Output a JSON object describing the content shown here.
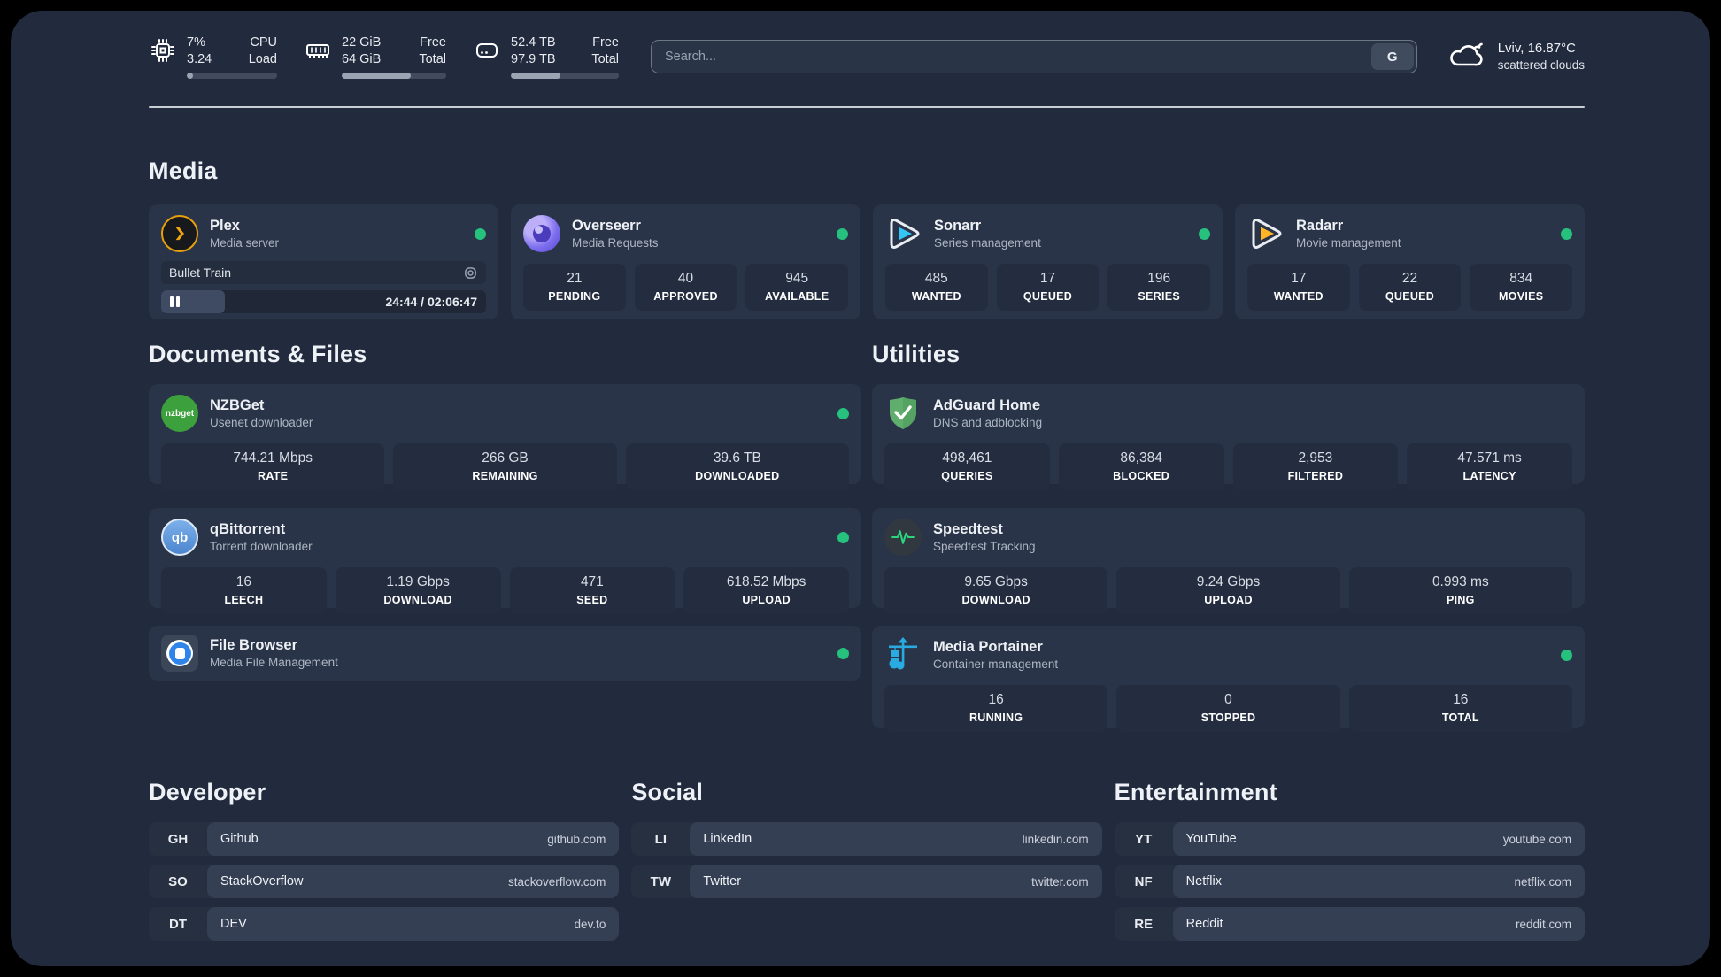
{
  "colors": {
    "page_background": "#222b3d",
    "card_background": "#2a3448",
    "stat_tile_background": "#242d3f",
    "status_online_green": "#25c17d",
    "plex_orange": "#e8a00d",
    "overseerr_purple": "#7c6cee",
    "sonarr_cyan": "#35c5f4",
    "radarr_yellow": "#ffb526",
    "nzbget_green": "#3ca03c",
    "qbittorrent_blue": "#4c86cf",
    "adguard_green": "#5fae6e",
    "speedtest_green": "#2ad77e",
    "portainer_blue": "#29abe2"
  },
  "topbar": {
    "cpu": {
      "value_top": "7%",
      "value_bottom": "3.24",
      "label_top": "CPU",
      "label_bottom": "Load",
      "usage_pct": 7
    },
    "memory": {
      "value_top": "22 GiB",
      "value_bottom": "64 GiB",
      "label_top": "Free",
      "label_bottom": "Total",
      "usage_pct": 66
    },
    "disk": {
      "value_top": "52.4 TB",
      "value_bottom": "97.9 TB",
      "label_top": "Free",
      "label_bottom": "Total",
      "usage_pct": 46
    },
    "search": {
      "placeholder": "Search...",
      "button": "G"
    },
    "weather": {
      "location": "Lviv, 16.87°C",
      "condition": "scattered clouds"
    }
  },
  "sections": {
    "media": {
      "title": "Media"
    },
    "documents": {
      "title": "Documents & Files"
    },
    "utilities": {
      "title": "Utilities"
    }
  },
  "apps": {
    "plex": {
      "name": "Plex",
      "description": "Media server",
      "now_playing": "Bullet Train",
      "time": "24:44 / 02:06:47",
      "progress_pct": 19.5
    },
    "overseerr": {
      "name": "Overseerr",
      "description": "Media Requests",
      "stats": [
        {
          "value": "21",
          "label": "PENDING"
        },
        {
          "value": "40",
          "label": "APPROVED"
        },
        {
          "value": "945",
          "label": "AVAILABLE"
        }
      ]
    },
    "sonarr": {
      "name": "Sonarr",
      "description": "Series management",
      "stats": [
        {
          "value": "485",
          "label": "WANTED"
        },
        {
          "value": "17",
          "label": "QUEUED"
        },
        {
          "value": "196",
          "label": "SERIES"
        }
      ]
    },
    "radarr": {
      "name": "Radarr",
      "description": "Movie management",
      "stats": [
        {
          "value": "17",
          "label": "WANTED"
        },
        {
          "value": "22",
          "label": "QUEUED"
        },
        {
          "value": "834",
          "label": "MOVIES"
        }
      ]
    },
    "nzbget": {
      "name": "NZBGet",
      "description": "Usenet downloader",
      "icon_text": "nzbget",
      "stats": [
        {
          "value": "744.21 Mbps",
          "label": "RATE"
        },
        {
          "value": "266 GB",
          "label": "REMAINING"
        },
        {
          "value": "39.6 TB",
          "label": "DOWNLOADED"
        }
      ]
    },
    "qbittorrent": {
      "name": "qBittorrent",
      "description": "Torrent downloader",
      "icon_text": "qb",
      "stats": [
        {
          "value": "16",
          "label": "LEECH"
        },
        {
          "value": "1.19 Gbps",
          "label": "DOWNLOAD"
        },
        {
          "value": "471",
          "label": "SEED"
        },
        {
          "value": "618.52 Mbps",
          "label": "UPLOAD"
        }
      ]
    },
    "filebrowser": {
      "name": "File Browser",
      "description": "Media File Management"
    },
    "adguard": {
      "name": "AdGuard Home",
      "description": "DNS and adblocking",
      "stats": [
        {
          "value": "498,461",
          "label": "QUERIES"
        },
        {
          "value": "86,384",
          "label": "BLOCKED"
        },
        {
          "value": "2,953",
          "label": "FILTERED"
        },
        {
          "value": "47.571 ms",
          "label": "LATENCY"
        }
      ]
    },
    "speedtest": {
      "name": "Speedtest",
      "description": "Speedtest Tracking",
      "stats": [
        {
          "value": "9.65 Gbps",
          "label": "DOWNLOAD"
        },
        {
          "value": "9.24 Gbps",
          "label": "UPLOAD"
        },
        {
          "value": "0.993 ms",
          "label": "PING"
        }
      ]
    },
    "portainer": {
      "name": "Media Portainer",
      "description": "Container management",
      "stats": [
        {
          "value": "16",
          "label": "RUNNING"
        },
        {
          "value": "0",
          "label": "STOPPED"
        },
        {
          "value": "16",
          "label": "TOTAL"
        }
      ]
    }
  },
  "bookmarks": {
    "developer": {
      "title": "Developer",
      "items": [
        {
          "abbr": "GH",
          "name": "Github",
          "url": "github.com"
        },
        {
          "abbr": "SO",
          "name": "StackOverflow",
          "url": "stackoverflow.com"
        },
        {
          "abbr": "DT",
          "name": "DEV",
          "url": "dev.to"
        }
      ]
    },
    "social": {
      "title": "Social",
      "items": [
        {
          "abbr": "LI",
          "name": "LinkedIn",
          "url": "linkedin.com"
        },
        {
          "abbr": "TW",
          "name": "Twitter",
          "url": "twitter.com"
        }
      ]
    },
    "entertainment": {
      "title": "Entertainment",
      "items": [
        {
          "abbr": "YT",
          "name": "YouTube",
          "url": "youtube.com"
        },
        {
          "abbr": "NF",
          "name": "Netflix",
          "url": "netflix.com"
        },
        {
          "abbr": "RE",
          "name": "Reddit",
          "url": "reddit.com"
        }
      ]
    }
  }
}
